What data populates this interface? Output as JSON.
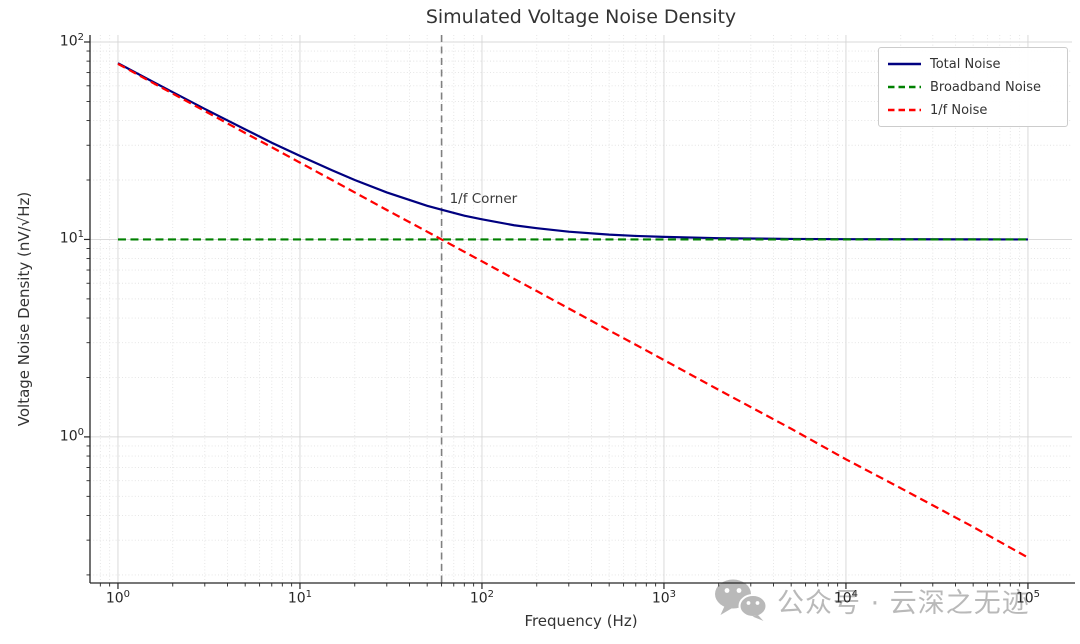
{
  "chart_data": {
    "type": "line",
    "title": "Simulated Voltage Noise Density",
    "xlabel": "Frequency (Hz)",
    "ylabel": "Voltage Noise Density (nV/√Hz)",
    "x_scale": "log",
    "y_scale": "log",
    "xlim": [
      0.702,
      174600
    ],
    "ylim": [
      0.182,
      108.5
    ],
    "x_tick_exponents": [
      0,
      1,
      2,
      3,
      4,
      5
    ],
    "y_tick_exponents": [
      0,
      1,
      2
    ],
    "grid": {
      "major": true,
      "minor": true,
      "major_color": "#d4d4d4",
      "minor_color": "#dcdcdc"
    },
    "x": [
      1,
      1.5,
      2,
      3,
      5,
      7,
      10,
      15,
      20,
      30,
      50,
      60,
      80,
      100,
      150,
      200,
      300,
      500,
      700,
      1000,
      2000,
      5000,
      10000,
      20000,
      50000,
      100000
    ],
    "series": [
      {
        "name": "Total Noise",
        "color": "#000080",
        "line_style": "solid",
        "values": [
          78.1,
          64.0,
          55.7,
          45.8,
          36.1,
          30.9,
          26.5,
          22.4,
          20.0,
          17.3,
          14.8,
          14.14,
          13.2,
          12.65,
          11.8,
          11.4,
          10.95,
          10.58,
          10.42,
          10.3,
          10.15,
          10.06,
          10.03,
          10.02,
          10.01,
          10.0
        ]
      },
      {
        "name": "Broadband Noise",
        "color": "#008000",
        "line_style": "dashed",
        "values": [
          10,
          10,
          10,
          10,
          10,
          10,
          10,
          10,
          10,
          10,
          10,
          10,
          10,
          10,
          10,
          10,
          10,
          10,
          10,
          10,
          10,
          10,
          10,
          10,
          10,
          10
        ]
      },
      {
        "name": "1/f Noise",
        "color": "#ff0000",
        "line_style": "dashed",
        "values": [
          77.5,
          63.2,
          54.8,
          44.7,
          34.6,
          29.3,
          24.5,
          20.0,
          17.3,
          14.1,
          10.95,
          10.0,
          8.66,
          7.75,
          6.32,
          5.48,
          4.47,
          3.46,
          2.93,
          2.45,
          1.73,
          1.1,
          0.77,
          0.55,
          0.35,
          0.245
        ]
      }
    ],
    "corner_marker": {
      "x": 60,
      "label": "1/f Corner",
      "color": "#808080",
      "line_style": "dashed"
    },
    "legend": {
      "location": "upper right"
    },
    "spine_color": "#262626",
    "tick_label_color": "#262626"
  },
  "watermark": {
    "icon": "wechat-icon",
    "text": "公众号 · 云深之无迹",
    "color": "#a8a8a8"
  }
}
